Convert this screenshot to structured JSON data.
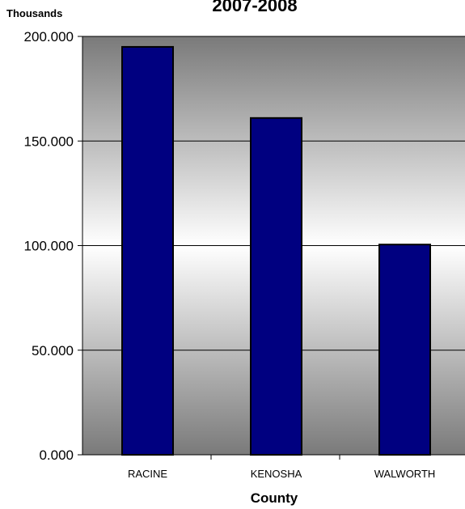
{
  "chart_data": {
    "type": "bar",
    "title": "2007-2008",
    "units_label": "Thousands",
    "xlabel": "County",
    "ylabel": "",
    "categories": [
      "RACINE",
      "KENOSHA",
      "WALWORTH"
    ],
    "values": [
      195,
      161,
      100.5
    ],
    "ylim": [
      0,
      200
    ],
    "yticks": [
      0,
      50,
      100,
      150,
      200
    ],
    "ytick_labels": [
      "0.000",
      "50.000",
      "100.000",
      "150.000",
      "200.000"
    ],
    "grid": true,
    "legend": "none",
    "colors": {
      "bar_fill": "#000080",
      "bar_stroke": "#000000",
      "plot_gradient_edge": "#7a7a7a",
      "plot_gradient_center": "#ffffff",
      "grid": "#000000"
    }
  }
}
